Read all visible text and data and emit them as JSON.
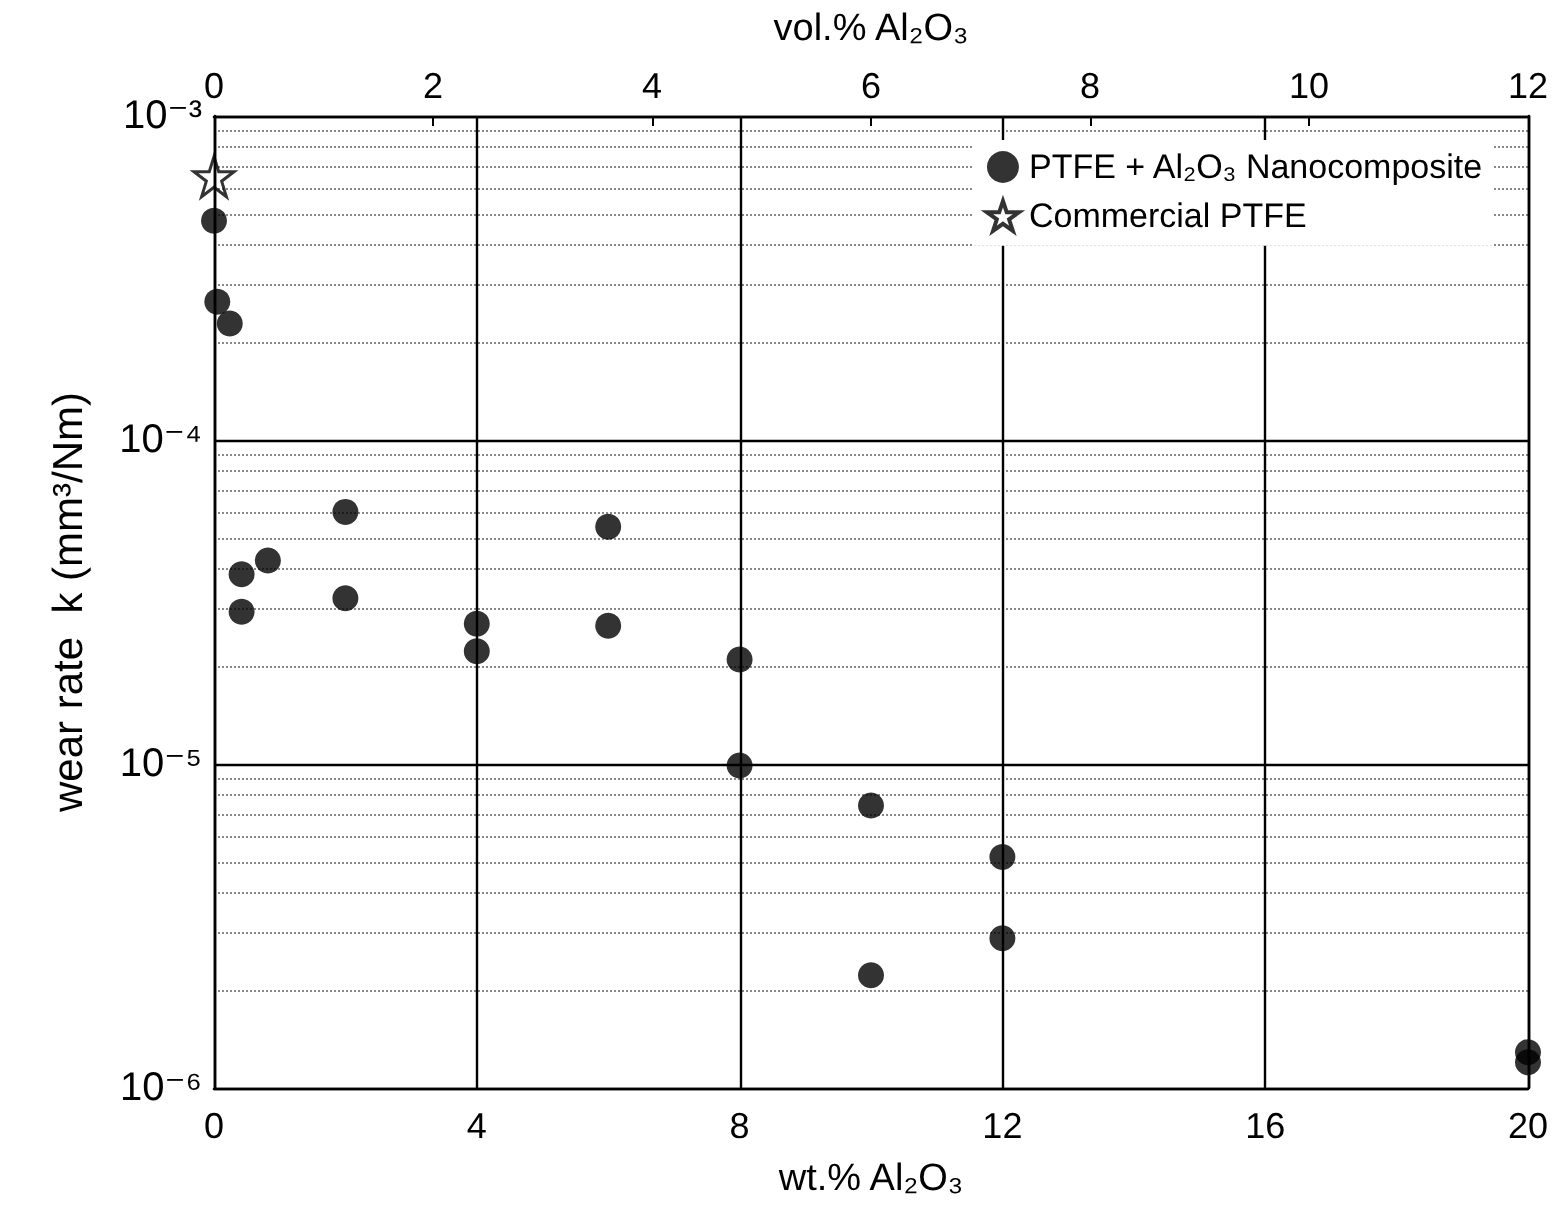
{
  "chart_data": {
    "type": "scatter",
    "xlabel": "wt.% Al₂O₃",
    "ylabel": "wear rate  k (mm³/Nm)",
    "x2label": "vol.% Al₂O₃",
    "xlim": [
      0,
      20
    ],
    "xticks": [
      0,
      4,
      8,
      12,
      16,
      20
    ],
    "x2lim": [
      0,
      12
    ],
    "x2ticks": [
      0,
      2,
      4,
      6,
      8,
      10,
      12
    ],
    "ylim": [
      1e-06,
      0.001
    ],
    "log": "y",
    "yticks": [
      {
        "value": 1e-06,
        "label": "10⁻⁶"
      },
      {
        "value": 1e-05,
        "label": "10⁻⁵"
      },
      {
        "value": 0.0001,
        "label": "10⁻⁴"
      },
      {
        "value": 0.001,
        "label": "10⁻³"
      },
      {
        "value": 2e-06,
        "label": null
      },
      {
        "value": 3e-06,
        "label": null
      },
      {
        "value": 4e-06,
        "label": null
      },
      {
        "value": 5e-06,
        "label": null
      },
      {
        "value": 6e-06,
        "label": null
      },
      {
        "value": 7e-06,
        "label": null
      },
      {
        "value": 8e-06,
        "label": null
      },
      {
        "value": 9e-06,
        "label": null
      },
      {
        "value": 2e-05,
        "label": null
      },
      {
        "value": 3e-05,
        "label": null
      },
      {
        "value": 4e-05,
        "label": null
      },
      {
        "value": 5e-05,
        "label": null
      },
      {
        "value": 6e-05,
        "label": null
      },
      {
        "value": 7e-05,
        "label": null
      },
      {
        "value": 8e-05,
        "label": null
      },
      {
        "value": 9e-05,
        "label": null
      },
      {
        "value": 0.0002,
        "label": null
      },
      {
        "value": 0.0003,
        "label": null
      },
      {
        "value": 0.0004,
        "label": null
      },
      {
        "value": 0.0005,
        "label": null
      },
      {
        "value": 0.0006,
        "label": null
      },
      {
        "value": 0.0007,
        "label": null
      },
      {
        "value": 0.0008,
        "label": null
      },
      {
        "value": 0.0009,
        "label": null
      }
    ],
    "grid": true,
    "legend": "top right",
    "series": [
      {
        "name": "PTFE + Al₂O₃ Nanocomposite",
        "color": "#000000",
        "marker": "circle",
        "x": [
          0,
          0.05,
          0.24,
          0.42,
          0.82,
          2,
          0.42,
          2,
          4,
          4,
          6,
          6,
          8,
          8,
          10,
          10,
          12,
          12,
          20,
          20
        ],
        "values": [
          0.000475,
          0.000267,
          0.000229,
          3.85e-05,
          4.25e-05,
          6e-05,
          2.95e-05,
          3.25e-05,
          2.71e-05,
          2.23e-05,
          5.4e-05,
          2.67e-05,
          2.1e-05,
          9.9e-06,
          7.45e-06,
          2.23e-06,
          5.16e-06,
          2.9e-06,
          1.29e-06,
          1.2e-06
        ]
      },
      {
        "name": "Commercial PTFE",
        "color": "#000000",
        "marker": "star",
        "x": [
          0
        ],
        "values": [
          0.00065
        ]
      }
    ]
  }
}
